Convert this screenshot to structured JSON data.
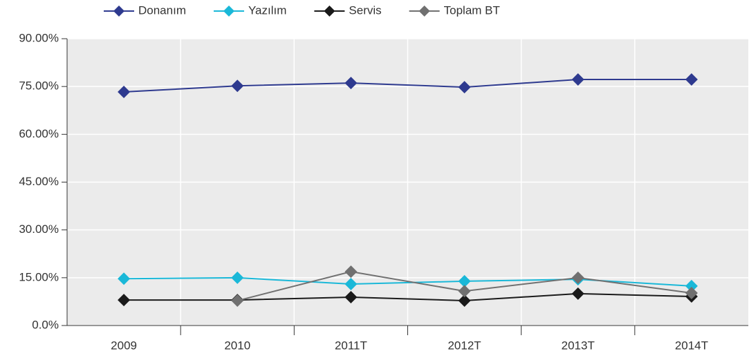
{
  "chart_data": {
    "type": "line",
    "categories": [
      "2009",
      "2010",
      "2011T",
      "2012T",
      "2013T",
      "2014T"
    ],
    "series": [
      {
        "name": "Donanım",
        "color": "#2e3a8f",
        "values": [
          73.3,
          75.2,
          76.1,
          74.8,
          77.2,
          77.2
        ]
      },
      {
        "name": "Yazılım",
        "color": "#1ab8d8",
        "values": [
          14.7,
          15.0,
          13.0,
          13.9,
          14.5,
          12.4
        ]
      },
      {
        "name": "Servis",
        "color": "#1a1a1a",
        "values": [
          8.0,
          8.0,
          8.9,
          7.8,
          10.0,
          9.1
        ]
      },
      {
        "name": "Toplam BT",
        "color": "#707070",
        "values": [
          null,
          7.8,
          16.9,
          10.8,
          15.0,
          10.2
        ]
      }
    ],
    "ylim": [
      0,
      90
    ],
    "yticks": [
      {
        "value": 0,
        "label": "0.0%"
      },
      {
        "value": 15,
        "label": "15.00%"
      },
      {
        "value": 30,
        "label": "30.00%"
      },
      {
        "value": 45,
        "label": "45.00%"
      },
      {
        "value": 60,
        "label": "60.00%"
      },
      {
        "value": 75,
        "label": "75.00%"
      },
      {
        "value": 90,
        "label": "90.00%"
      }
    ],
    "grid": true
  }
}
